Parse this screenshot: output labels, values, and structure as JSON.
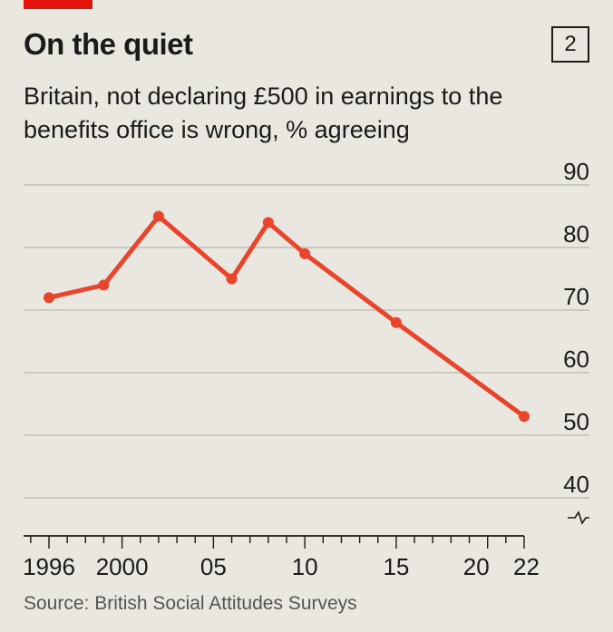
{
  "header": {
    "title": "On the quiet",
    "badge": "2",
    "subtitle": "Britain, not declaring £500 in earnings to the benefits office is wrong, % agreeing"
  },
  "footer": {
    "source": "Source: British Social Attitudes Surveys"
  },
  "colors": {
    "accent": "#e3120b",
    "line": "#e8452c",
    "grid": "#b8b6b0"
  },
  "chart_data": {
    "type": "line",
    "title": "On the quiet",
    "subtitle": "Britain, not declaring £500 in earnings to the benefits office is wrong, % agreeing",
    "x": [
      1996,
      1999,
      2002,
      2006,
      2008,
      2010,
      2015,
      2022
    ],
    "series": [
      {
        "values": [
          72,
          74,
          85,
          75,
          84,
          79,
          68,
          53
        ]
      }
    ],
    "ylim": [
      40,
      90
    ],
    "y_ticks": [
      "90",
      "80",
      "70",
      "60",
      "50",
      "40"
    ],
    "y_tick_values": [
      90,
      80,
      70,
      60,
      50,
      40
    ],
    "xlim": [
      1995,
      2022
    ],
    "x_tick_labels": [
      {
        "year": 1996,
        "label": "1996"
      },
      {
        "year": 2000,
        "label": "2000"
      },
      {
        "year": 2005,
        "label": "05"
      },
      {
        "year": 2010,
        "label": "10"
      },
      {
        "year": 2015,
        "label": "15"
      },
      {
        "year": 2020,
        "label": "20"
      },
      {
        "year": 2022,
        "label": "22"
      }
    ],
    "grid": true,
    "y_axis_broken": true
  }
}
